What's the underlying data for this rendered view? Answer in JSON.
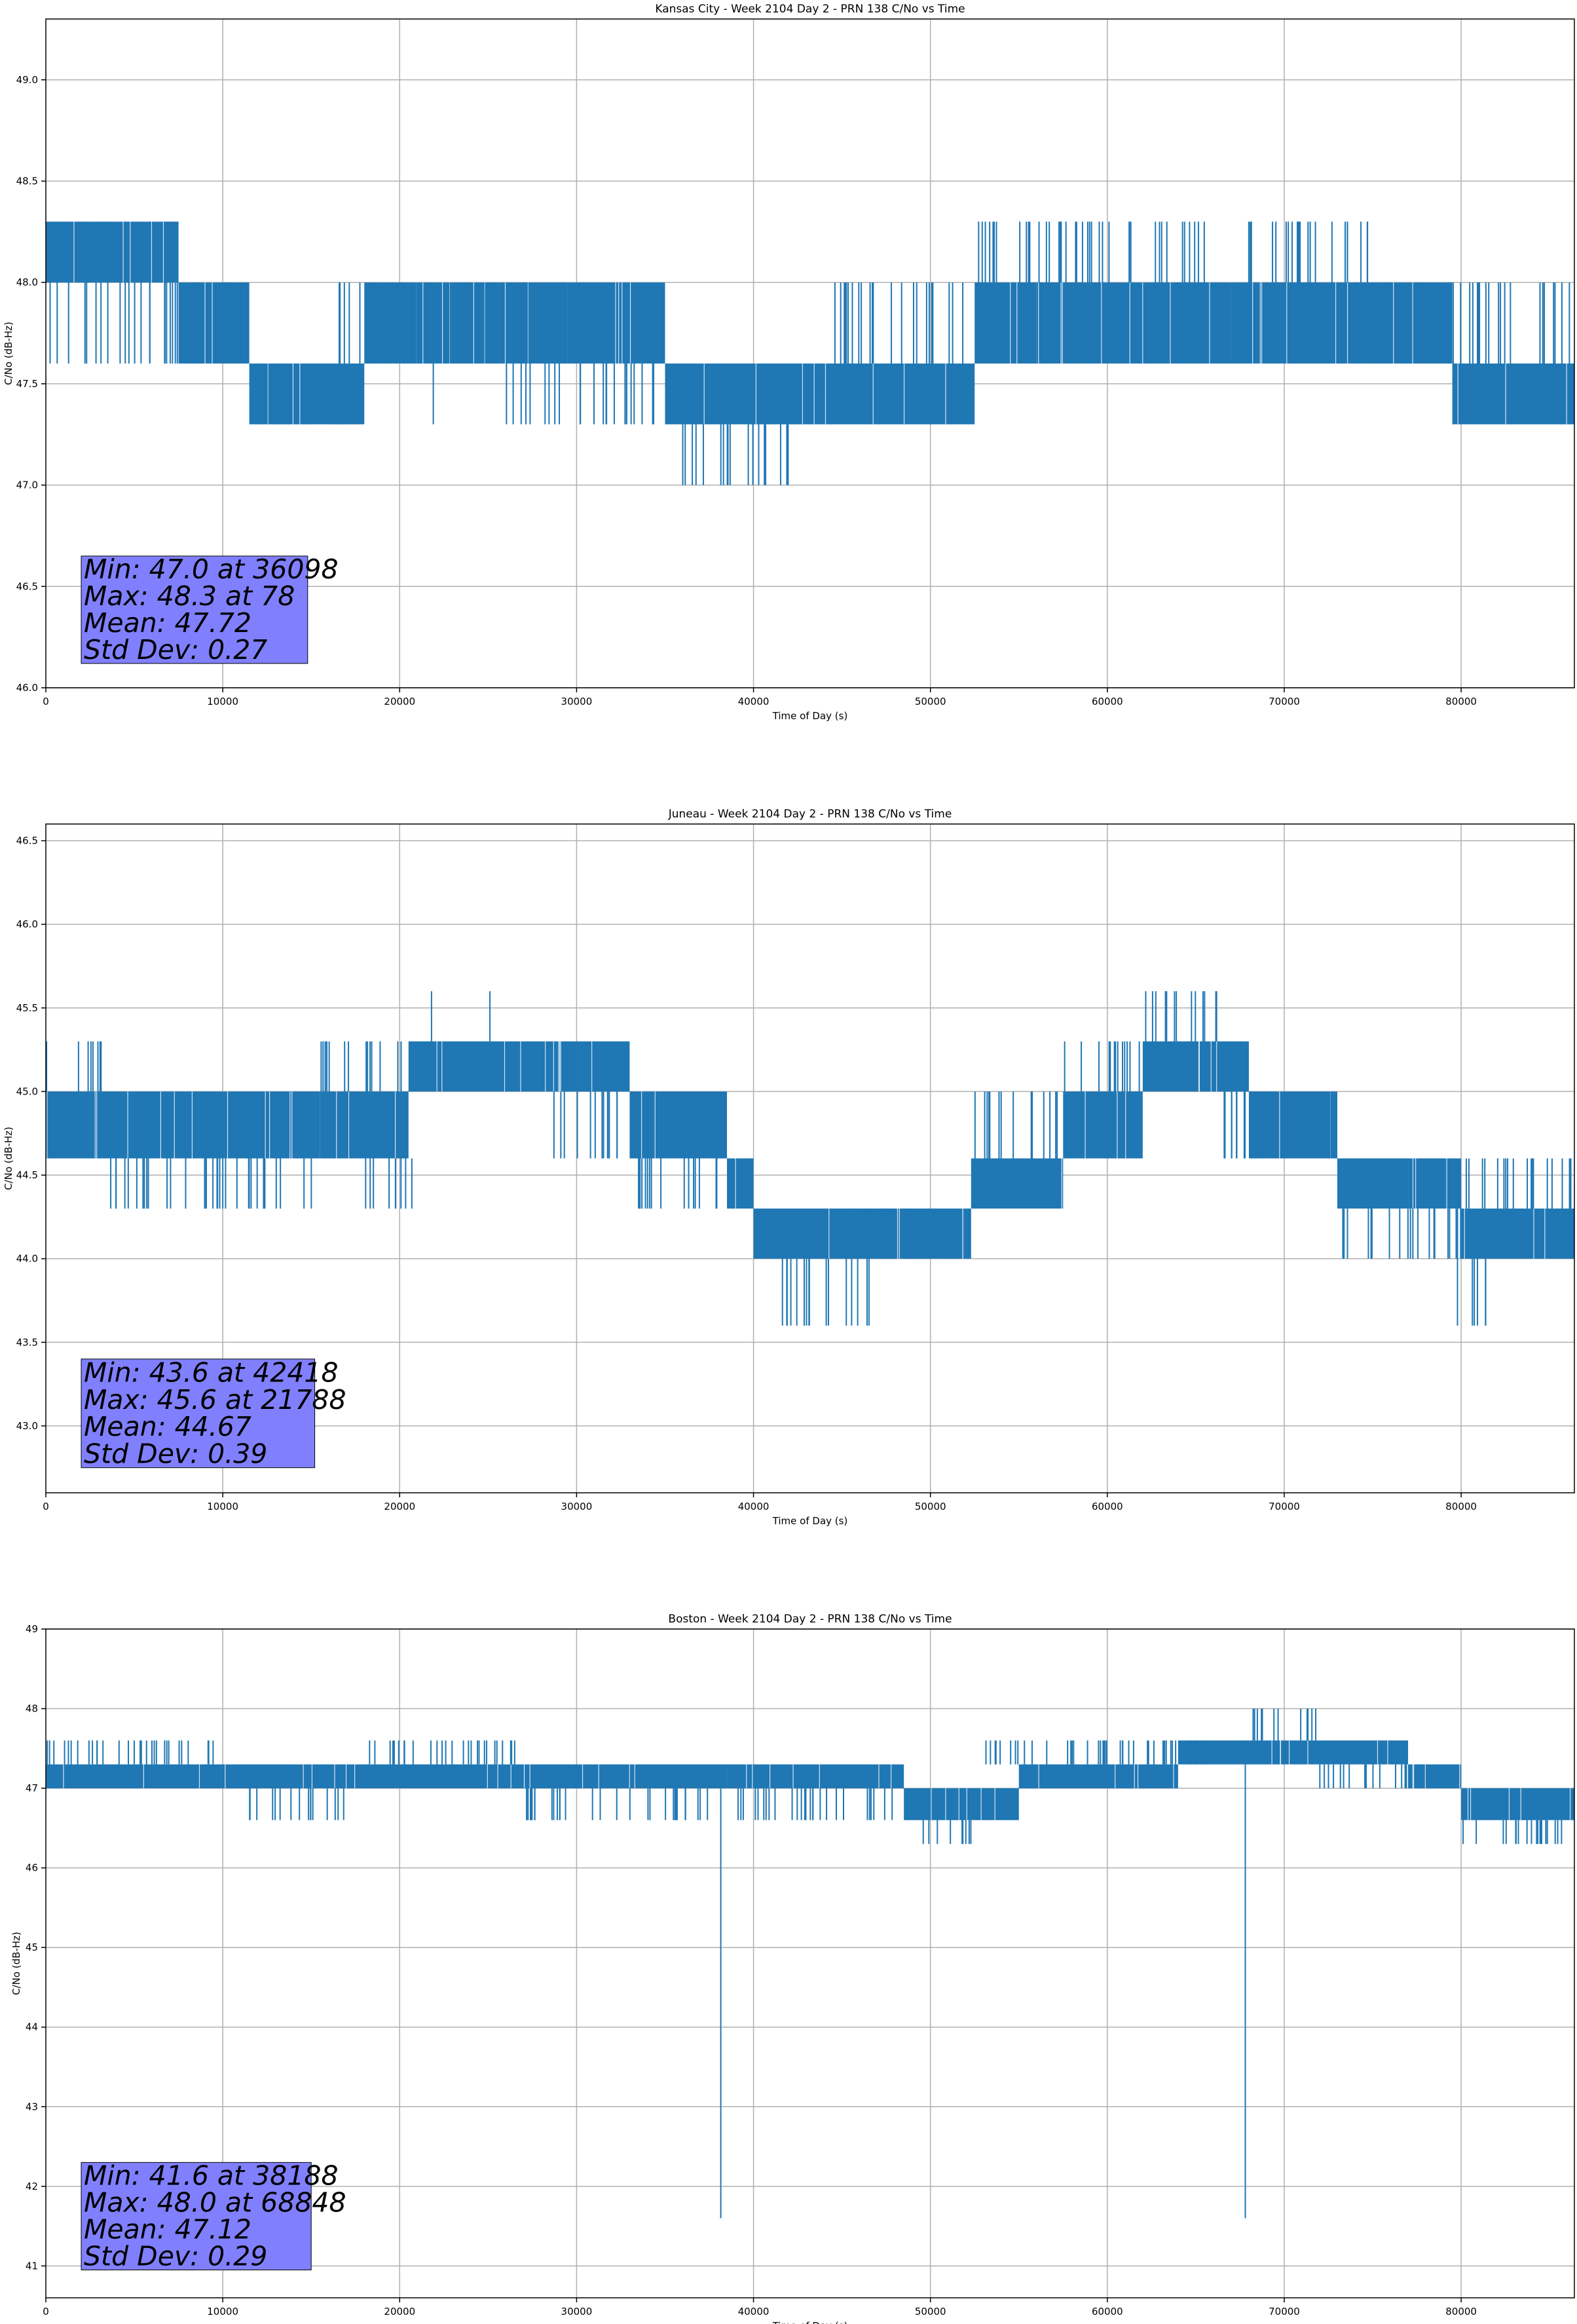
{
  "figure": {
    "background": "#ffffff",
    "series_color": "#1f77b4",
    "stats_box_color": "#8080ff",
    "grid_color": "#b0b0b0"
  },
  "chart_data": [
    {
      "type": "line",
      "title": "Kansas City - Week 2104 Day 2 - PRN 138 C/No vs Time",
      "xlabel": "Time of Day (s)",
      "ylabel": "C/No (dB-Hz)",
      "xlim": [
        0,
        86400
      ],
      "ylim": [
        46.0,
        49.3
      ],
      "xticks": [
        0,
        10000,
        20000,
        30000,
        40000,
        50000,
        60000,
        70000,
        80000
      ],
      "xtick_labels": [
        "0",
        "10000",
        "20000",
        "30000",
        "40000",
        "50000",
        "60000",
        "70000",
        "80000"
      ],
      "yticks": [
        46.0,
        46.5,
        47.0,
        47.5,
        48.0,
        48.5,
        49.0
      ],
      "ytick_labels": [
        "46.0",
        "46.5",
        "47.0",
        "47.5",
        "48.0",
        "48.5",
        "49.0"
      ],
      "grid": true,
      "stats": [
        "Min: 47.0 at 36098",
        "Max: 48.3 at 78",
        "Mean: 47.72",
        "Std Dev: 0.27"
      ],
      "stats_box": {
        "x_range": [
          2000,
          14800
        ],
        "y_range": [
          46.12,
          46.65
        ]
      },
      "series": [
        {
          "color": "#1f77b4",
          "bands": [
            {
              "x": [
                0,
                7500
              ],
              "y": [
                48.0,
                48.3
              ]
            },
            {
              "x": [
                7500,
                11500
              ],
              "y": [
                47.6,
                48.0
              ]
            },
            {
              "x": [
                11500,
                18000
              ],
              "y": [
                47.3,
                47.6
              ]
            },
            {
              "x": [
                18000,
                29500
              ],
              "y": [
                47.6,
                48.0
              ]
            },
            {
              "x": [
                29500,
                35000
              ],
              "y": [
                47.6,
                48.0
              ]
            },
            {
              "x": [
                35000,
                44000
              ],
              "y": [
                47.3,
                47.6
              ]
            },
            {
              "x": [
                44000,
                52500
              ],
              "y": [
                47.3,
                47.6
              ]
            },
            {
              "x": [
                52500,
                56000
              ],
              "y": [
                47.6,
                48.0
              ]
            },
            {
              "x": [
                56000,
                67000
              ],
              "y": [
                47.6,
                48.0
              ]
            },
            {
              "x": [
                67000,
                79500
              ],
              "y": [
                47.6,
                48.0
              ]
            },
            {
              "x": [
                79500,
                86400
              ],
              "y": [
                47.3,
                47.6
              ]
            }
          ],
          "spikes": [
            {
              "x": [
                0,
                7500
              ],
              "y": [
                47.6,
                48.3
              ]
            },
            {
              "x": [
                7500,
                11500
              ],
              "y": [
                47.6,
                48.0
              ]
            },
            {
              "x": [
                11500,
                18000
              ],
              "y": [
                47.3,
                47.6
              ]
            },
            {
              "x": [
                16500,
                18500
              ],
              "y": [
                47.6,
                48.0
              ]
            },
            {
              "x": [
                18000,
                29500
              ],
              "y": [
                47.6,
                48.0
              ]
            },
            {
              "x": [
                21800,
                22000
              ],
              "y": [
                47.3,
                47.6
              ]
            },
            {
              "x": [
                26000,
                34500
              ],
              "y": [
                47.3,
                47.6
              ]
            },
            {
              "x": [
                35800,
                42000
              ],
              "y": [
                47.0,
                47.3
              ]
            },
            {
              "x": [
                39800,
                42600
              ],
              "y": [
                47.3,
                47.6
              ]
            },
            {
              "x": [
                44500,
                52500
              ],
              "y": [
                47.6,
                48.0
              ]
            },
            {
              "x": [
                52500,
                66000
              ],
              "y": [
                48.0,
                48.3
              ]
            },
            {
              "x": [
                67000,
                75000
              ],
              "y": [
                48.0,
                48.3
              ]
            },
            {
              "x": [
                79500,
                86400
              ],
              "y": [
                47.6,
                48.0
              ]
            },
            {
              "x": [
                73500,
                79000
              ],
              "y": [
                47.6,
                48.0
              ]
            }
          ]
        }
      ]
    },
    {
      "type": "line",
      "title": "Juneau - Week 2104 Day 2 - PRN 138 C/No vs Time",
      "xlabel": "Time of Day (s)",
      "ylabel": "C/No (dB-Hz)",
      "xlim": [
        0,
        86400
      ],
      "ylim": [
        42.6,
        46.6
      ],
      "xticks": [
        0,
        10000,
        20000,
        30000,
        40000,
        50000,
        60000,
        70000,
        80000
      ],
      "xtick_labels": [
        "0",
        "10000",
        "20000",
        "30000",
        "40000",
        "50000",
        "60000",
        "70000",
        "80000"
      ],
      "yticks": [
        43.0,
        43.5,
        44.0,
        44.5,
        45.0,
        45.5,
        46.0,
        46.5
      ],
      "ytick_labels": [
        "43.0",
        "43.5",
        "44.0",
        "44.5",
        "45.0",
        "45.5",
        "46.0",
        "46.5"
      ],
      "grid": true,
      "stats": [
        "Min: 43.6 at 42418",
        "Max: 45.6 at 21788",
        "Mean: 44.67",
        "Std Dev: 0.39"
      ],
      "stats_box": {
        "x_range": [
          2000,
          15200
        ],
        "y_range": [
          42.75,
          43.4
        ]
      },
      "series": [
        {
          "color": "#1f77b4",
          "bands": [
            {
              "x": [
                0,
                7700
              ],
              "y": [
                44.6,
                45.0
              ]
            },
            {
              "x": [
                7700,
                15500
              ],
              "y": [
                44.6,
                45.0
              ]
            },
            {
              "x": [
                15500,
                20500
              ],
              "y": [
                44.6,
                45.0
              ]
            },
            {
              "x": [
                20500,
                30000
              ],
              "y": [
                45.0,
                45.3
              ]
            },
            {
              "x": [
                30000,
                33000
              ],
              "y": [
                45.0,
                45.3
              ]
            },
            {
              "x": [
                33000,
                38500
              ],
              "y": [
                44.6,
                45.0
              ]
            },
            {
              "x": [
                38500,
                40000
              ],
              "y": [
                44.3,
                44.6
              ]
            },
            {
              "x": [
                40000,
                52300
              ],
              "y": [
                44.0,
                44.3
              ]
            },
            {
              "x": [
                52300,
                57500
              ],
              "y": [
                44.3,
                44.6
              ]
            },
            {
              "x": [
                57500,
                62000
              ],
              "y": [
                44.6,
                45.0
              ]
            },
            {
              "x": [
                62000,
                68000
              ],
              "y": [
                45.0,
                45.3
              ]
            },
            {
              "x": [
                68000,
                73000
              ],
              "y": [
                44.6,
                45.0
              ]
            },
            {
              "x": [
                73000,
                77000
              ],
              "y": [
                44.3,
                44.6
              ]
            },
            {
              "x": [
                77000,
                80000
              ],
              "y": [
                44.3,
                44.6
              ]
            },
            {
              "x": [
                80000,
                86400
              ],
              "y": [
                44.0,
                44.3
              ]
            }
          ],
          "spikes": [
            {
              "x": [
                0,
                3500
              ],
              "y": [
                45.0,
                45.3
              ]
            },
            {
              "x": [
                3500,
                7700
              ],
              "y": [
                44.3,
                44.6
              ]
            },
            {
              "x": [
                7700,
                15500
              ],
              "y": [
                44.3,
                44.6
              ]
            },
            {
              "x": [
                15500,
                20500
              ],
              "y": [
                45.0,
                45.3
              ]
            },
            {
              "x": [
                18000,
                21000
              ],
              "y": [
                44.3,
                44.6
              ]
            },
            {
              "x": [
                21700,
                21900
              ],
              "y": [
                45.3,
                45.6
              ]
            },
            {
              "x": [
                25000,
                25200
              ],
              "y": [
                45.3,
                45.6
              ]
            },
            {
              "x": [
                28500,
                33000
              ],
              "y": [
                44.6,
                45.0
              ]
            },
            {
              "x": [
                33500,
                39500
              ],
              "y": [
                44.3,
                44.6
              ]
            },
            {
              "x": [
                41500,
                47000
              ],
              "y": [
                43.6,
                44.0
              ]
            },
            {
              "x": [
                44000,
                52300
              ],
              "y": [
                44.0,
                44.3
              ]
            },
            {
              "x": [
                52300,
                57500
              ],
              "y": [
                44.6,
                45.0
              ]
            },
            {
              "x": [
                57500,
                62000
              ],
              "y": [
                45.0,
                45.3
              ]
            },
            {
              "x": [
                62000,
                66500
              ],
              "y": [
                45.3,
                45.6
              ]
            },
            {
              "x": [
                66500,
                73500
              ],
              "y": [
                44.6,
                45.0
              ]
            },
            {
              "x": [
                73000,
                80000
              ],
              "y": [
                44.0,
                44.3
              ]
            },
            {
              "x": [
                79500,
                81500
              ],
              "y": [
                43.6,
                44.0
              ]
            },
            {
              "x": [
                80000,
                86400
              ],
              "y": [
                44.3,
                44.6
              ]
            }
          ]
        }
      ]
    },
    {
      "type": "line",
      "title": "Boston - Week 2104 Day 2 - PRN 138 C/No vs Time",
      "xlabel": "Time of Day (s)",
      "ylabel": "C/No (dB-Hz)",
      "xlim": [
        0,
        86400
      ],
      "ylim": [
        40.6,
        49.0
      ],
      "xticks": [
        0,
        10000,
        20000,
        30000,
        40000,
        50000,
        60000,
        70000,
        80000
      ],
      "xtick_labels": [
        "0",
        "10000",
        "20000",
        "30000",
        "40000",
        "50000",
        "60000",
        "70000",
        "80000"
      ],
      "yticks": [
        41,
        42,
        43,
        44,
        45,
        46,
        47,
        48,
        49
      ],
      "ytick_labels": [
        "41",
        "42",
        "43",
        "44",
        "45",
        "46",
        "47",
        "48",
        "49"
      ],
      "grid": true,
      "stats": [
        "Min: 41.6 at 38188",
        "Max: 48.0 at 68848",
        "Mean: 47.12",
        "Std Dev: 0.29"
      ],
      "stats_box": {
        "x_range": [
          2000,
          15000
        ],
        "y_range": [
          40.95,
          42.3
        ]
      },
      "series": [
        {
          "color": "#1f77b4",
          "bands": [
            {
              "x": [
                0,
                27000
              ],
              "y": [
                47.0,
                47.3
              ]
            },
            {
              "x": [
                27000,
                38500
              ],
              "y": [
                47.0,
                47.3
              ]
            },
            {
              "x": [
                38500,
                48500
              ],
              "y": [
                47.0,
                47.3
              ]
            },
            {
              "x": [
                48500,
                55000
              ],
              "y": [
                46.6,
                47.0
              ]
            },
            {
              "x": [
                55000,
                64000
              ],
              "y": [
                47.0,
                47.3
              ]
            },
            {
              "x": [
                64000,
                77000
              ],
              "y": [
                47.3,
                47.6
              ]
            },
            {
              "x": [
                77000,
                80000
              ],
              "y": [
                47.0,
                47.3
              ]
            },
            {
              "x": [
                80000,
                86400
              ],
              "y": [
                46.6,
                47.0
              ]
            }
          ],
          "spikes": [
            {
              "x": [
                0,
                10000
              ],
              "y": [
                47.3,
                47.6
              ]
            },
            {
              "x": [
                11500,
                17000
              ],
              "y": [
                46.6,
                47.0
              ]
            },
            {
              "x": [
                18000,
                27000
              ],
              "y": [
                47.3,
                47.6
              ]
            },
            {
              "x": [
                27000,
                38000
              ],
              "y": [
                46.6,
                47.0
              ]
            },
            {
              "x": [
                38000,
                38300
              ],
              "y": [
                41.6,
                47.0
              ]
            },
            {
              "x": [
                39000,
                48000
              ],
              "y": [
                46.6,
                47.0
              ]
            },
            {
              "x": [
                49500,
                52500
              ],
              "y": [
                46.3,
                46.6
              ]
            },
            {
              "x": [
                52500,
                60000
              ],
              "y": [
                47.3,
                47.6
              ]
            },
            {
              "x": [
                60000,
                68000
              ],
              "y": [
                47.3,
                47.6
              ]
            },
            {
              "x": [
                67700,
                67900
              ],
              "y": [
                41.6,
                47.3
              ]
            },
            {
              "x": [
                68000,
                72000
              ],
              "y": [
                47.6,
                48.0
              ]
            },
            {
              "x": [
                72000,
                79000
              ],
              "y": [
                47.0,
                47.3
              ]
            },
            {
              "x": [
                80000,
                86400
              ],
              "y": [
                46.3,
                46.6
              ]
            }
          ]
        }
      ]
    }
  ]
}
